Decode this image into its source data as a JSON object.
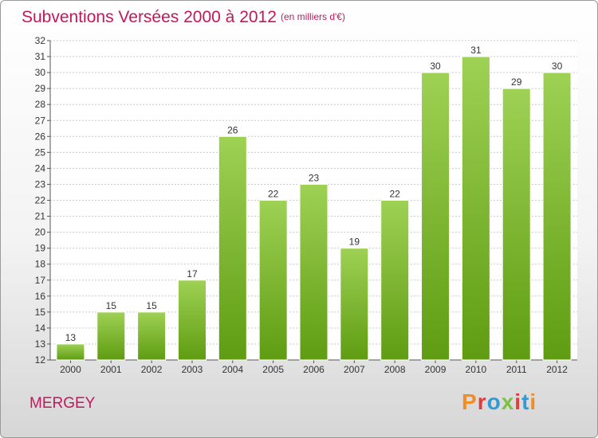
{
  "header": {
    "title": "Subventions Versées 2000 à 2012",
    "subtitle": "(en milliers d'€)"
  },
  "footer": {
    "commune": "MERGEY",
    "logo_text": "Proxiti"
  },
  "colors": {
    "title": "#c2185b",
    "bar_top": "#9ed154",
    "bar_bottom": "#5f9c12",
    "grid": "#c8c8c8",
    "logo": [
      "#f28c28",
      "#e23c3c",
      "#2e9bd6",
      "#7cc142",
      "#e23c3c",
      "#2e9bd6",
      "#f28c28"
    ]
  },
  "chart_data": {
    "type": "bar",
    "title": "Subventions Versées 2000 à 2012",
    "subtitle": "(en milliers d'€)",
    "xlabel": "",
    "ylabel": "",
    "categories": [
      "2000",
      "2001",
      "2002",
      "2003",
      "2004",
      "2005",
      "2006",
      "2007",
      "2008",
      "2009",
      "2010",
      "2011",
      "2012"
    ],
    "values": [
      13,
      15,
      15,
      17,
      26,
      22,
      23,
      19,
      22,
      30,
      31,
      29,
      30
    ],
    "ylim": [
      12,
      32
    ],
    "yticks": [
      12,
      13,
      14,
      15,
      16,
      17,
      18,
      19,
      20,
      21,
      22,
      23,
      24,
      25,
      26,
      27,
      28,
      29,
      30,
      31,
      32
    ],
    "grid": true,
    "legend": "none"
  }
}
